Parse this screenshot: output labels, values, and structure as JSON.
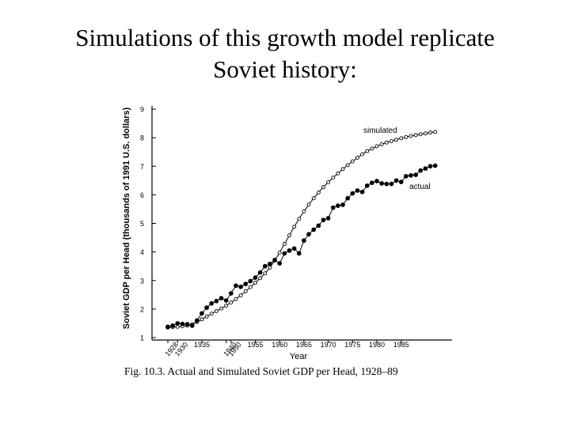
{
  "slide": {
    "title_line1": "Simulations of this growth model replicate",
    "title_line2": "Soviet history:"
  },
  "caption": "Fig. 10.3. Actual and Simulated Soviet GDP per Head, 1928–89",
  "chart_data": {
    "type": "line",
    "title": "",
    "xlabel": "Year",
    "ylabel": "Soviet GDP per Head (thousands of 1991 U.S. dollars)",
    "ylim": [
      1,
      9
    ],
    "yticks": [
      1,
      2,
      3,
      4,
      5,
      6,
      7,
      8,
      9
    ],
    "xticks": [
      {
        "label": "1928",
        "x": 0,
        "rotated": true
      },
      {
        "label": "1930",
        "x": 2,
        "rotated": true
      },
      {
        "label": "1935",
        "x": 7,
        "rotated": false
      },
      {
        "label": "1940",
        "x": 12,
        "rotated": true
      },
      {
        "label": "1950",
        "x": 13,
        "rotated": true
      },
      {
        "label": "1955",
        "x": 18,
        "rotated": false
      },
      {
        "label": "1960",
        "x": 23,
        "rotated": false
      },
      {
        "label": "1965",
        "x": 28,
        "rotated": false
      },
      {
        "label": "1970",
        "x": 33,
        "rotated": false
      },
      {
        "label": "1975",
        "x": 38,
        "rotated": false
      },
      {
        "label": "1980",
        "x": 43,
        "rotated": false
      },
      {
        "label": "1985",
        "x": 48,
        "rotated": false
      }
    ],
    "grid": false,
    "series": [
      {
        "name": "simulated",
        "marker": "open-circle",
        "values": [
          1.35,
          1.37,
          1.38,
          1.4,
          1.42,
          1.47,
          1.55,
          1.64,
          1.74,
          1.84,
          1.93,
          2.02,
          2.12,
          2.23,
          2.35,
          2.48,
          2.62,
          2.77,
          2.92,
          3.08,
          3.25,
          3.45,
          3.7,
          3.98,
          4.28,
          4.58,
          4.88,
          5.16,
          5.42,
          5.66,
          5.88,
          6.08,
          6.27,
          6.44,
          6.6,
          6.75,
          6.9,
          7.04,
          7.17,
          7.3,
          7.42,
          7.53,
          7.62,
          7.7,
          7.77,
          7.83,
          7.88,
          7.93,
          7.98,
          8.02,
          8.06,
          8.09,
          8.12,
          8.15,
          8.18,
          8.2
        ]
      },
      {
        "name": "actual",
        "marker": "filled-circle",
        "values": [
          1.38,
          1.42,
          1.5,
          1.48,
          1.47,
          1.42,
          1.6,
          1.85,
          2.05,
          2.2,
          2.28,
          2.38,
          2.3,
          2.55,
          2.82,
          2.78,
          2.88,
          2.98,
          3.1,
          3.28,
          3.5,
          3.58,
          3.72,
          3.6,
          3.95,
          4.05,
          4.12,
          3.95,
          4.4,
          4.62,
          4.78,
          4.92,
          5.12,
          5.18,
          5.55,
          5.62,
          5.65,
          5.88,
          6.05,
          6.15,
          6.1,
          6.32,
          6.42,
          6.48,
          6.4,
          6.38,
          6.38,
          6.5,
          6.45,
          6.65,
          6.68,
          6.7,
          6.85,
          6.92,
          7.0,
          7.02
        ]
      }
    ],
    "annotations": [
      {
        "text": "simulated",
        "series": "simulated"
      },
      {
        "text": "actual",
        "series": "actual"
      }
    ]
  }
}
